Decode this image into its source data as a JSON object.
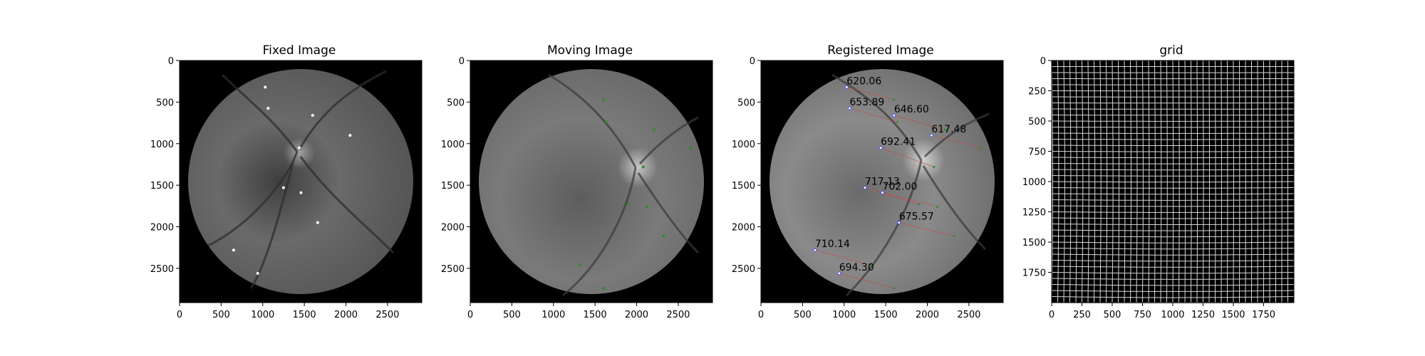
{
  "chart_data": [
    {
      "type": "image",
      "title": "Fixed Image",
      "x_range": [
        0,
        2912
      ],
      "y_range": [
        0,
        2912
      ],
      "xticks": [
        0,
        500,
        1000,
        1500,
        2000,
        2500
      ],
      "yticks": [
        0,
        500,
        1000,
        1500,
        2000,
        2500
      ],
      "points": [
        [
          1030,
          320
        ],
        [
          1065,
          575
        ],
        [
          1600,
          660
        ],
        [
          2050,
          900
        ],
        [
          1440,
          1050
        ],
        [
          1250,
          1530
        ],
        [
          1460,
          1590
        ],
        [
          1660,
          1950
        ],
        [
          650,
          2280
        ],
        [
          940,
          2560
        ]
      ],
      "point_color": "#ffffff"
    },
    {
      "type": "image",
      "title": "Moving Image",
      "x_range": [
        0,
        2912
      ],
      "y_range": [
        0,
        2912
      ],
      "xticks": [
        0,
        500,
        1000,
        1500,
        2000,
        2500
      ],
      "yticks": [
        0,
        500,
        1000,
        1500,
        2000,
        2500
      ],
      "points": [
        [
          1600,
          470
        ],
        [
          1640,
          740
        ],
        [
          2210,
          830
        ],
        [
          2650,
          1050
        ],
        [
          2080,
          1280
        ],
        [
          1900,
          1730
        ],
        [
          2120,
          1760
        ],
        [
          2320,
          2110
        ],
        [
          1320,
          2460
        ],
        [
          1600,
          2740
        ]
      ],
      "point_color": "#2e8b2e"
    },
    {
      "type": "image",
      "title": "Registered Image",
      "x_range": [
        0,
        2912
      ],
      "y_range": [
        0,
        2912
      ],
      "xticks": [
        0,
        500,
        1000,
        1500,
        2000,
        2500
      ],
      "yticks": [
        0,
        500,
        1000,
        1500,
        2000,
        2500
      ],
      "points": [
        {
          "x": 1030,
          "y": 320,
          "label": "620.06",
          "tx": 1600,
          "ty": 470
        },
        {
          "x": 1065,
          "y": 575,
          "label": "653.89",
          "tx": 1640,
          "ty": 740
        },
        {
          "x": 1600,
          "y": 660,
          "label": "646.60",
          "tx": 2210,
          "ty": 830
        },
        {
          "x": 2050,
          "y": 900,
          "label": "617.48",
          "tx": 2650,
          "ty": 1050
        },
        {
          "x": 1440,
          "y": 1050,
          "label": "692.41",
          "tx": 2080,
          "ty": 1280
        },
        {
          "x": 1250,
          "y": 1530,
          "label": "717.13",
          "tx": 1900,
          "ty": 1730
        },
        {
          "x": 1460,
          "y": 1590,
          "label": "702.00",
          "tx": 2120,
          "ty": 1760
        },
        {
          "x": 1660,
          "y": 1950,
          "label": "675.57",
          "tx": 2320,
          "ty": 2110
        },
        {
          "x": 650,
          "y": 2280,
          "label": "710.14",
          "tx": 1320,
          "ty": 2460
        },
        {
          "x": 940,
          "y": 2560,
          "label": "694.30",
          "tx": 1600,
          "ty": 2740
        }
      ]
    },
    {
      "type": "image",
      "title": "grid",
      "x_range": [
        0,
        2000
      ],
      "y_range": [
        0,
        2000
      ],
      "xticks": [
        0,
        250,
        500,
        750,
        1000,
        1250,
        1500,
        1750
      ],
      "yticks": [
        0,
        250,
        500,
        750,
        1000,
        1250,
        1500,
        1750
      ],
      "grid_spacing": 50
    }
  ]
}
